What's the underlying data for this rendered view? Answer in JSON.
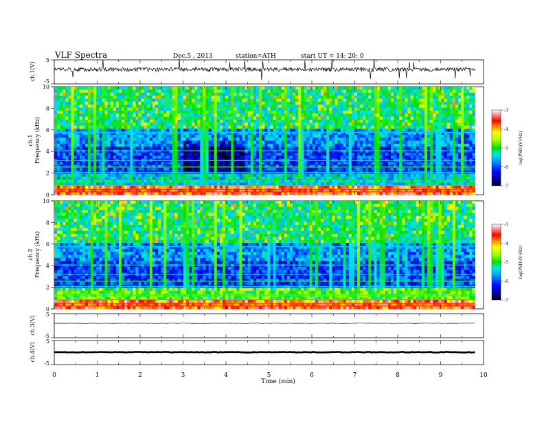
{
  "header": {
    "title": "VLF  Spectra",
    "date": "Dec.5  , 2013",
    "station": "station=ATH",
    "start": "start  UT  =   14: 20: 0"
  },
  "panels": {
    "ch1_wave": {
      "ylabel": "ch.1(V)",
      "yticks": [
        "5",
        "-5"
      ]
    },
    "ch1_spec": {
      "ylabel_ch": "ch.1",
      "ylabel_freq": "Frequency (kHz)",
      "yticks": [
        "10",
        "8",
        "6",
        "4",
        "2",
        "0"
      ]
    },
    "ch2_spec": {
      "ylabel_ch": "ch.2",
      "ylabel_freq": "Frequency (kHz)",
      "yticks": [
        "10",
        "8",
        "6",
        "4",
        "2",
        "0"
      ]
    },
    "ch3_wave": {
      "ylabel": "ch.3(V)",
      "yticks": [
        "5",
        "-5"
      ]
    },
    "ch4_wave": {
      "ylabel": "ch.4(V)",
      "yticks": [
        "5",
        "-5"
      ]
    }
  },
  "colorbar": {
    "label": "log(PSD)(V²/Hz)",
    "ticks": [
      "-3",
      "-4",
      "-5",
      "-6",
      "-7"
    ]
  },
  "chart_data": [
    {
      "type": "line",
      "title": "VLF  Spectra",
      "ylabel": "ch.1(V)",
      "xlabel": "Time  (min)",
      "xlim": [
        0,
        10
      ],
      "ylim": [
        -5,
        5
      ],
      "series": [
        {
          "description_level": 0.0,
          "noise_amplitude": 0.8
        }
      ]
    },
    {
      "type": "heatmap",
      "ylabel": "ch.1 Frequency (kHz)",
      "xlim": [
        0,
        10
      ],
      "data_end_min": 9.8,
      "ylim": [
        0,
        10
      ],
      "zlim": [
        -7,
        -3
      ],
      "zlabel": "log(PSD)(V²/Hz)"
    },
    {
      "type": "heatmap",
      "ylabel": "ch.2 Frequency (kHz)",
      "xlim": [
        0,
        10
      ],
      "data_end_min": 9.8,
      "ylim": [
        0,
        10
      ],
      "zlim": [
        -7,
        -3
      ],
      "zlabel": "log(PSD)(V²/Hz)"
    },
    {
      "type": "line",
      "ylabel": "ch.3(V)",
      "xlim": [
        0,
        10
      ],
      "ylim": [
        -5,
        5
      ],
      "series": [
        {
          "level": 0.0
        }
      ]
    },
    {
      "type": "line",
      "ylabel": "ch.4(V)",
      "xlim": [
        0,
        10
      ],
      "ylim": [
        -5,
        5
      ],
      "series": [
        {
          "level": 0.0
        }
      ]
    }
  ],
  "xaxis": {
    "label": "Time  (min)",
    "ticks": [
      "0",
      "1",
      "2",
      "3",
      "4",
      "5",
      "6",
      "7",
      "8",
      "9",
      "10"
    ]
  }
}
